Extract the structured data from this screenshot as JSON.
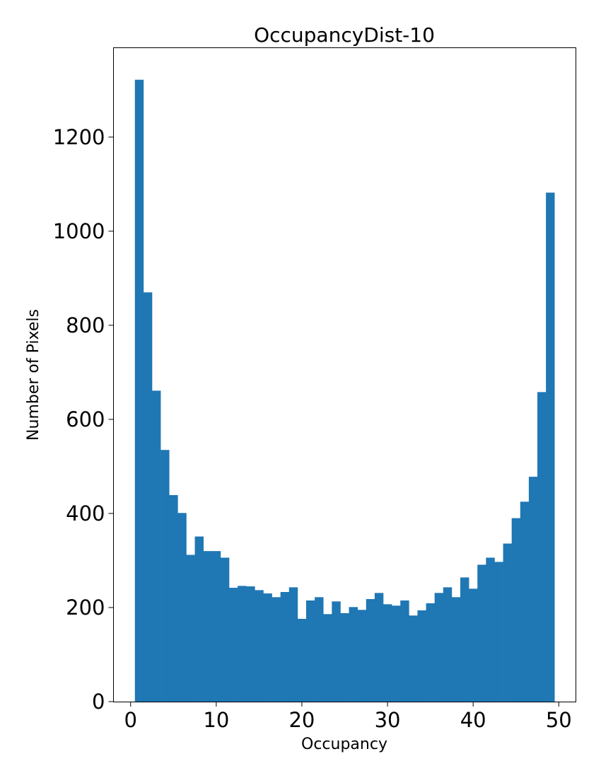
{
  "chart_data": {
    "type": "bar",
    "title": "OccupancyDist-10",
    "xlabel": "Occupancy",
    "ylabel": "Number of Pixels",
    "xlim": [
      -2,
      52
    ],
    "ylim": [
      0,
      1390
    ],
    "xticks": [
      0,
      10,
      20,
      30,
      40,
      50
    ],
    "yticks": [
      0,
      200,
      400,
      600,
      800,
      1000,
      1200
    ],
    "bar_color": "#1f77b4",
    "bin_width": 1,
    "bin_centers": [
      1,
      2,
      3,
      4,
      5,
      6,
      7,
      8,
      9,
      10,
      11,
      12,
      13,
      14,
      15,
      16,
      17,
      18,
      19,
      20,
      21,
      22,
      23,
      24,
      25,
      26,
      27,
      28,
      29,
      30,
      31,
      32,
      33,
      34,
      35,
      36,
      37,
      38,
      39,
      40,
      41,
      42,
      43,
      44,
      45,
      46,
      47,
      48,
      49
    ],
    "values": [
      1322,
      870,
      661,
      535,
      439,
      401,
      312,
      351,
      320,
      320,
      306,
      242,
      246,
      245,
      237,
      230,
      222,
      233,
      243,
      176,
      215,
      222,
      186,
      213,
      188,
      201,
      195,
      218,
      231,
      207,
      204,
      215,
      183,
      194,
      209,
      231,
      243,
      222,
      264,
      240,
      291,
      306,
      297,
      336,
      390,
      425,
      478,
      658,
      1082
    ],
    "grid": false,
    "legend": "none"
  }
}
